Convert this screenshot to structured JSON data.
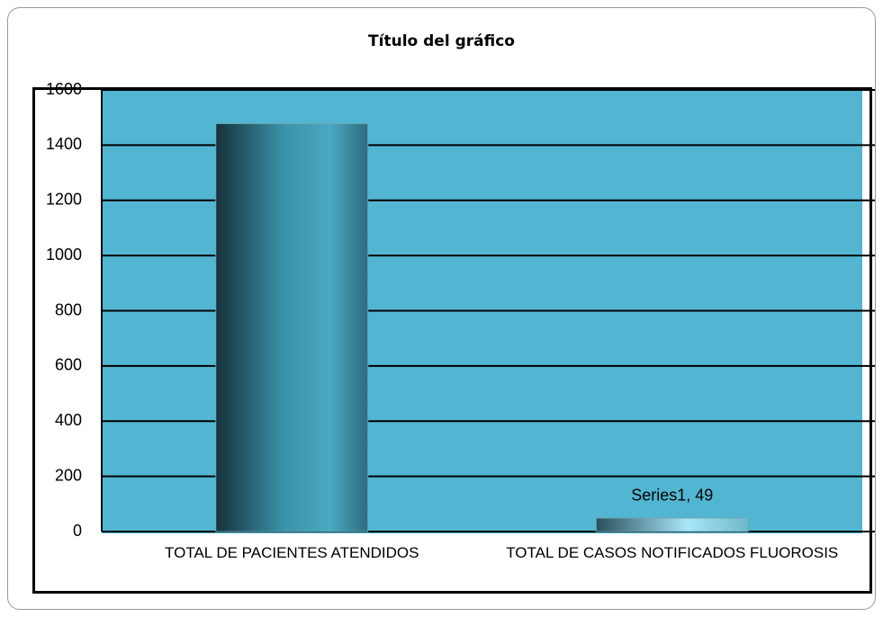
{
  "chart_data": {
    "type": "bar",
    "title": "Título del gráfico",
    "categories": [
      "TOTAL DE PACIENTES ATENDIDOS",
      "TOTAL DE CASOS NOTIFICADOS FLUOROSIS"
    ],
    "series": [
      {
        "name": "Series1",
        "color": "#3d97ad",
        "values": [
          1478,
          49
        ],
        "value_labels": [
          null,
          "Series1, 49"
        ]
      }
    ],
    "ylim": [
      0,
      1600
    ],
    "yticks": [
      0,
      200,
      400,
      600,
      800,
      1000,
      1200,
      1400,
      1600
    ],
    "grid": true
  }
}
